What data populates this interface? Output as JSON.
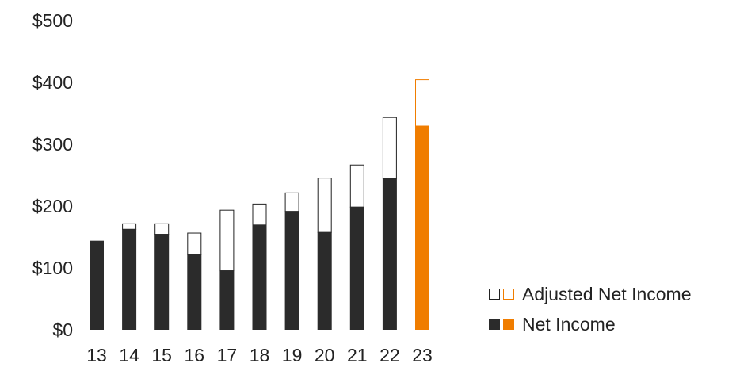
{
  "chart_data": {
    "type": "bar",
    "categories": [
      "13",
      "14",
      "15",
      "16",
      "17",
      "18",
      "19",
      "20",
      "21",
      "22",
      "23"
    ],
    "series": [
      {
        "name": "Net Income",
        "values": [
          144,
          163,
          155,
          122,
          96,
          170,
          192,
          158,
          199,
          245,
          330
        ]
      },
      {
        "name": "Adjusted Net Income",
        "values": [
          144,
          172,
          172,
          157,
          194,
          204,
          222,
          246,
          267,
          344,
          405
        ]
      }
    ],
    "highlight_category": "23",
    "ylim": [
      0,
      500
    ],
    "yticks": [
      "$0",
      "$100",
      "$200",
      "$300",
      "$400",
      "$500"
    ],
    "ytick_values": [
      0,
      100,
      200,
      300,
      400,
      500
    ],
    "xlabel": "",
    "ylabel": "",
    "title": "",
    "grid": false,
    "legend_position": "bottom-right",
    "colors": {
      "net_income": "#2b2b2b",
      "adjusted_fill": "#ffffff",
      "adjusted_stroke": "#222222",
      "highlight": "#f07d00"
    }
  },
  "legend": {
    "adjusted_label": "Adjusted Net Income",
    "net_label": "Net Income"
  }
}
